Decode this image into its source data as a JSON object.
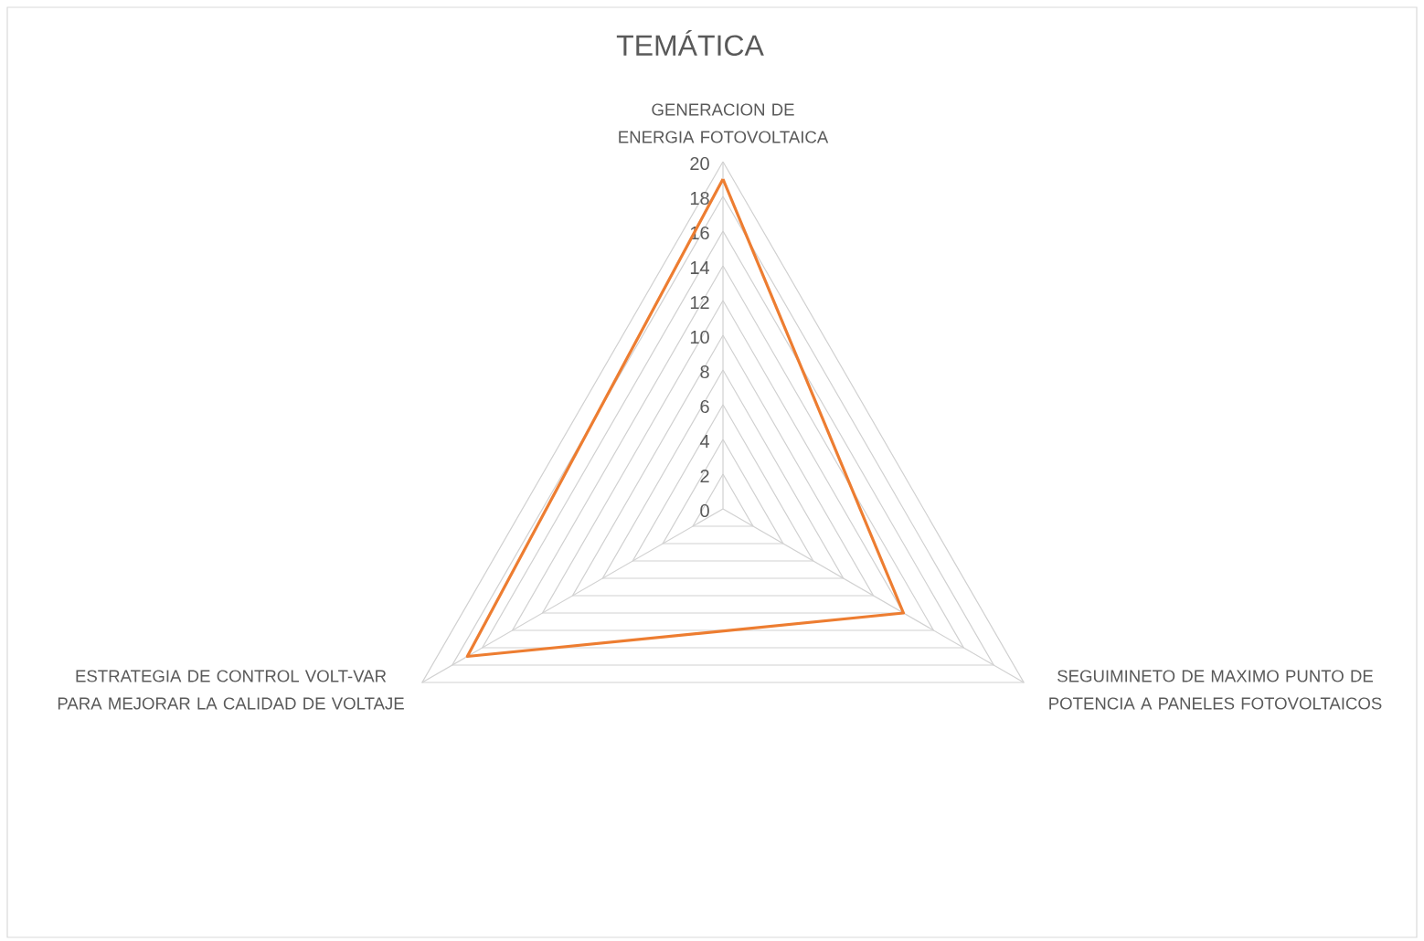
{
  "chart_data": {
    "type": "radar",
    "title": "TEMÁTICA",
    "categories": [
      "GENERACION DE ENERGIA FOTOVOLTAICA",
      "SEGUIMINETO DE MAXIMO PUNTO DE POTENCIA A PANELES FOTOVOLTAICOS",
      "ESTRATEGIA DE CONTROL VOLT-VAR PARA MEJORAR LA CALIDAD DE VOLTAJE"
    ],
    "series": [
      {
        "color": "#ed7d31",
        "values": [
          19,
          12,
          17
        ]
      }
    ],
    "ylim": [
      0,
      20
    ],
    "yticks": [
      0,
      2,
      4,
      6,
      8,
      10,
      12,
      14,
      16,
      18,
      20
    ],
    "grid": true,
    "marker": "none",
    "line_style": "solid"
  }
}
